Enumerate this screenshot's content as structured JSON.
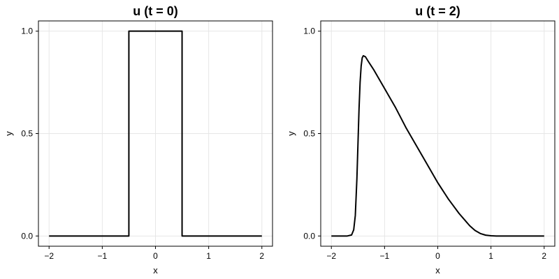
{
  "chart_data": [
    {
      "type": "line",
      "title": "u (t = 0)",
      "xlabel": "x",
      "ylabel": "y",
      "xlim": [
        -2.2,
        2.2
      ],
      "ylim": [
        -0.05,
        1.05
      ],
      "xticks": [
        -2,
        -1,
        0,
        1,
        2
      ],
      "xtick_labels": [
        "−2",
        "−1",
        "0",
        "1",
        "2"
      ],
      "yticks": [
        0,
        0.5,
        1
      ],
      "ytick_labels": [
        "0.0",
        "0.5",
        "1.0"
      ],
      "grid": true,
      "series": [
        {
          "x": [
            -2,
            -0.5,
            -0.5,
            0.5,
            0.5,
            2
          ],
          "y": [
            0,
            0,
            1,
            1,
            0,
            0
          ]
        }
      ]
    },
    {
      "type": "line",
      "title": "u (t = 2)",
      "xlabel": "x",
      "ylabel": "y",
      "xlim": [
        -2.2,
        2.2
      ],
      "ylim": [
        -0.05,
        1.05
      ],
      "xticks": [
        -2,
        -1,
        0,
        1,
        2
      ],
      "xtick_labels": [
        "−2",
        "−1",
        "0",
        "1",
        "2"
      ],
      "yticks": [
        0,
        0.5,
        1
      ],
      "ytick_labels": [
        "0.0",
        "0.5",
        "1.0"
      ],
      "grid": true,
      "series": [
        {
          "x": [
            -2,
            -1.7,
            -1.62,
            -1.58,
            -1.55,
            -1.52,
            -1.5,
            -1.48,
            -1.46,
            -1.44,
            -1.42,
            -1.4,
            -1.36,
            -1.3,
            -1.2,
            -1.0,
            -0.8,
            -0.6,
            -0.4,
            -0.2,
            0.0,
            0.2,
            0.4,
            0.5,
            0.6,
            0.7,
            0.8,
            0.9,
            1.0,
            1.1,
            1.2,
            2
          ],
          "y": [
            0,
            0,
            0.005,
            0.03,
            0.1,
            0.28,
            0.45,
            0.62,
            0.75,
            0.83,
            0.87,
            0.88,
            0.875,
            0.85,
            0.81,
            0.72,
            0.63,
            0.53,
            0.44,
            0.35,
            0.26,
            0.18,
            0.11,
            0.08,
            0.05,
            0.027,
            0.012,
            0.004,
            0.001,
            0.0,
            0.0,
            0
          ]
        }
      ]
    }
  ]
}
